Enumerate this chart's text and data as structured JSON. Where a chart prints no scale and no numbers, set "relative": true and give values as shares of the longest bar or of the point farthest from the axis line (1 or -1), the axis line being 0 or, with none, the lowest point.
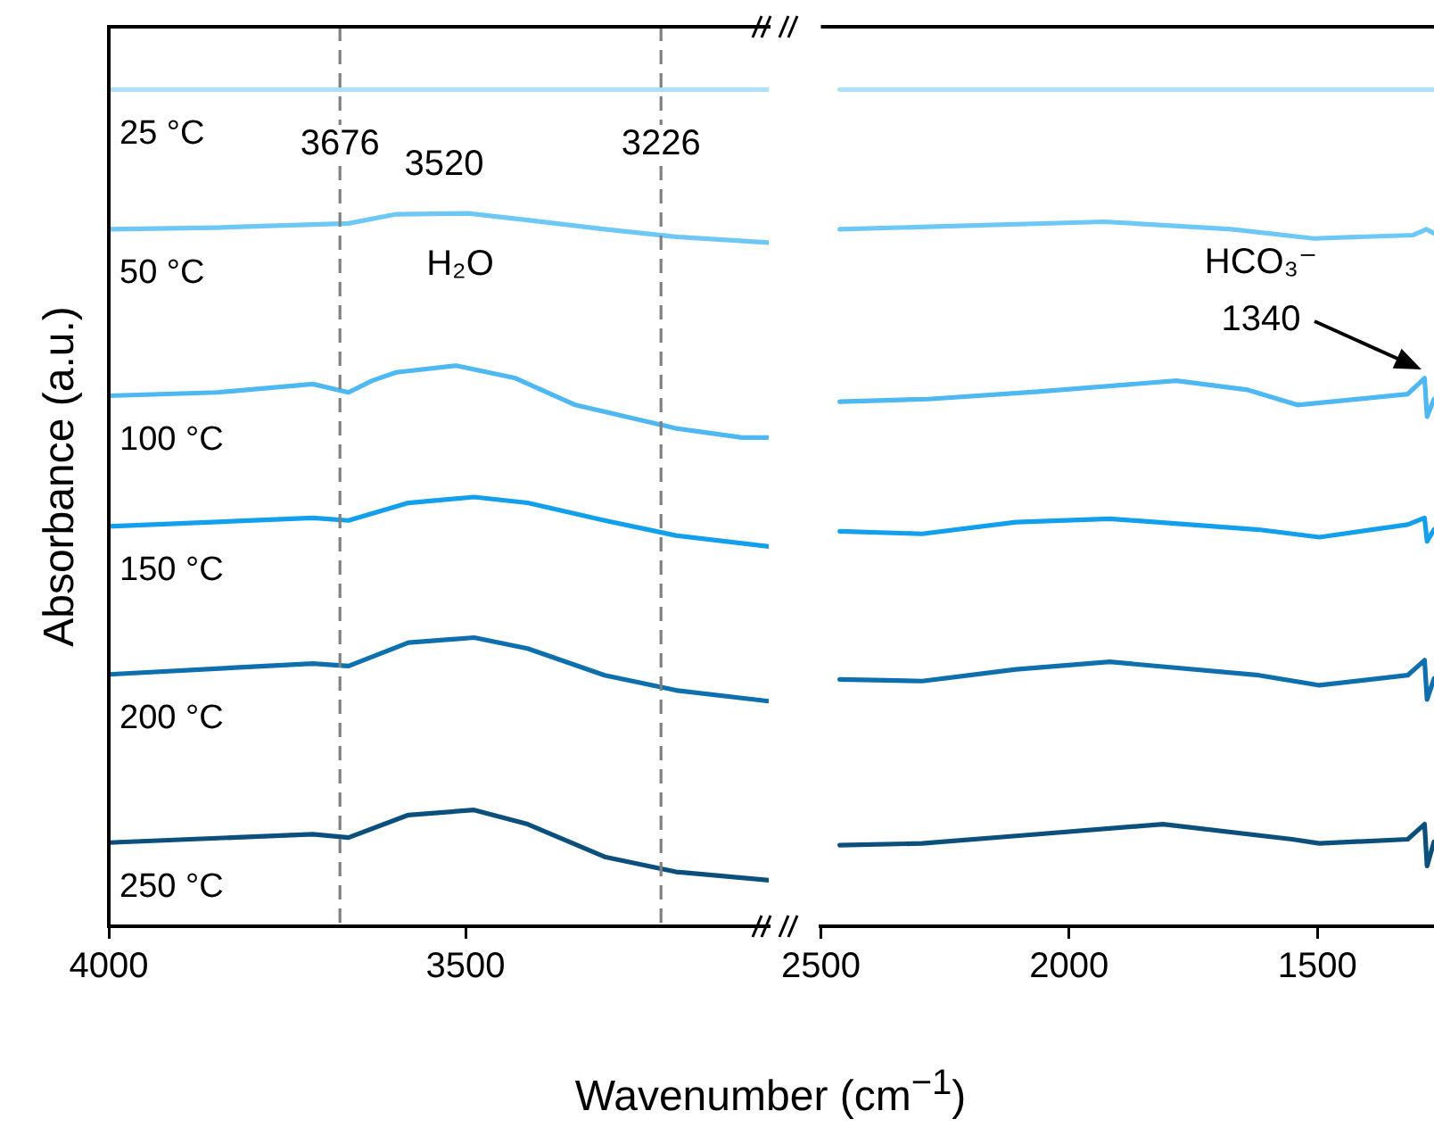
{
  "chart_data": [
    {
      "type": "line",
      "relative": true,
      "ylabel": "Absorbance (a.u.)",
      "xlabel": "Wavenumber (cm$^{−1}$)",
      "xlim": [
        4000,
        3075
      ],
      "xticks": [
        4000,
        3500
      ],
      "tick_labels": "x",
      "series": [
        {
          "name": "25 °C",
          "color": "#aee0f7",
          "x": [
            4000,
            3075
          ],
          "values": [
            1,
            1
          ]
        },
        {
          "name": "50 °C",
          "color": "#6ec8f6",
          "x": [
            4000,
            3848,
            3664,
            3597,
            3496,
            3413,
            3305,
            3205,
            3075
          ],
          "values": [
            0.833,
            0.835,
            0.84,
            0.851,
            0.852,
            0.844,
            0.833,
            0.824,
            0.817
          ]
        },
        {
          "name": "100 °C",
          "color": "#4db8f2",
          "x": [
            4000,
            3848,
            3714,
            3664,
            3631,
            3597,
            3513,
            3430,
            3346,
            3205,
            3112,
            3075
          ],
          "values": [
            0.634,
            0.638,
            0.648,
            0.638,
            0.652,
            0.662,
            0.67,
            0.655,
            0.623,
            0.595,
            0.584,
            0.584
          ]
        },
        {
          "name": "150 °C",
          "color": "#12a0ec",
          "x": [
            4000,
            3714,
            3664,
            3580,
            3488,
            3413,
            3305,
            3205,
            3075
          ],
          "values": [
            0.478,
            0.488,
            0.485,
            0.506,
            0.513,
            0.506,
            0.485,
            0.467,
            0.454
          ]
        },
        {
          "name": "200 °C",
          "color": "#0e6fae",
          "x": [
            4000,
            3714,
            3664,
            3580,
            3488,
            3413,
            3305,
            3205,
            3075
          ],
          "values": [
            0.301,
            0.314,
            0.311,
            0.339,
            0.345,
            0.332,
            0.3,
            0.282,
            0.269
          ]
        },
        {
          "name": "250 °C",
          "color": "#0b4f7c",
          "x": [
            4000,
            3714,
            3664,
            3580,
            3488,
            3413,
            3305,
            3205,
            3075
          ],
          "values": [
            0.1,
            0.11,
            0.106,
            0.133,
            0.139,
            0.122,
            0.083,
            0.065,
            0.055
          ]
        }
      ],
      "ref_lines": [
        {
          "axis": "x",
          "value": 3676,
          "label": "3676",
          "color": "#808080",
          "line_style": "dashed"
        },
        {
          "axis": "x",
          "value": 3226,
          "label": "3226",
          "color": "#808080",
          "line_style": "dashed"
        }
      ],
      "annotations": [
        "3520",
        "H₂O"
      ]
    },
    {
      "type": "line",
      "relative": true,
      "xlim": [
        2500,
        1265
      ],
      "xticks": [
        2500,
        2000,
        1500
      ],
      "tick_labels": "x",
      "series": [
        {
          "color": "#aee0f7",
          "x": [
            2462,
            1265
          ],
          "values": [
            1,
            1
          ]
        },
        {
          "color": "#6ec8f6",
          "x": [
            2462,
            2284,
            1929,
            1673,
            1507,
            1307,
            1280,
            1265
          ],
          "values": [
            0.833,
            0.836,
            0.842,
            0.833,
            0.822,
            0.826,
            0.833,
            0.828
          ]
        },
        {
          "color": "#4db8f2",
          "x": [
            2462,
            2284,
            2062,
            1784,
            1640,
            1540,
            1318,
            1284,
            1279,
            1265
          ],
          "values": [
            0.627,
            0.63,
            0.639,
            0.652,
            0.641,
            0.623,
            0.636,
            0.655,
            0.609,
            0.63
          ]
        },
        {
          "color": "#12a0ec",
          "x": [
            2462,
            2296,
            2107,
            1918,
            1618,
            1496,
            1318,
            1284,
            1279,
            1265
          ],
          "values": [
            0.472,
            0.469,
            0.483,
            0.487,
            0.474,
            0.465,
            0.48,
            0.488,
            0.46,
            0.474
          ]
        },
        {
          "color": "#0e6fae",
          "x": [
            2462,
            2296,
            2107,
            1918,
            1618,
            1496,
            1318,
            1284,
            1279,
            1265
          ],
          "values": [
            0.295,
            0.293,
            0.307,
            0.316,
            0.3,
            0.288,
            0.3,
            0.318,
            0.271,
            0.296
          ]
        },
        {
          "color": "#0b4f7c",
          "x": [
            2462,
            2296,
            2107,
            1811,
            1551,
            1496,
            1318,
            1284,
            1279,
            1265
          ],
          "values": [
            0.097,
            0.099,
            0.108,
            0.122,
            0.104,
            0.099,
            0.104,
            0.122,
            0.072,
            0.101
          ]
        }
      ],
      "annotations": [
        "HCO₃⁻\n1340"
      ]
    }
  ]
}
